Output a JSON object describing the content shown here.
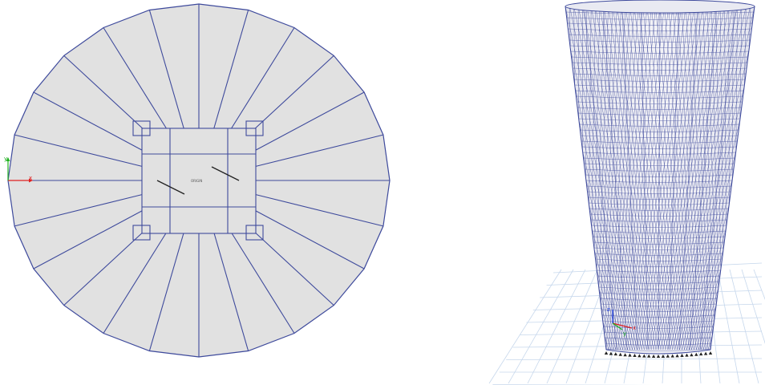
{
  "left_view": {
    "center_label": "ORIGIN",
    "axis_x_label": "x",
    "axis_y_label": "y",
    "polygon_sides": 24
  },
  "right_view": {
    "axis_x_label": "x",
    "axis_y_label": "y",
    "axis_z_label": "z"
  },
  "colors": {
    "frame_line": "#3e4a9c",
    "slab_fill": "#e1e1e1",
    "axis_x": "#e02020",
    "axis_y": "#20b020",
    "axis_z": "#2040e0",
    "ground_grid": "#c6d7ec",
    "background": "#ffffff"
  }
}
